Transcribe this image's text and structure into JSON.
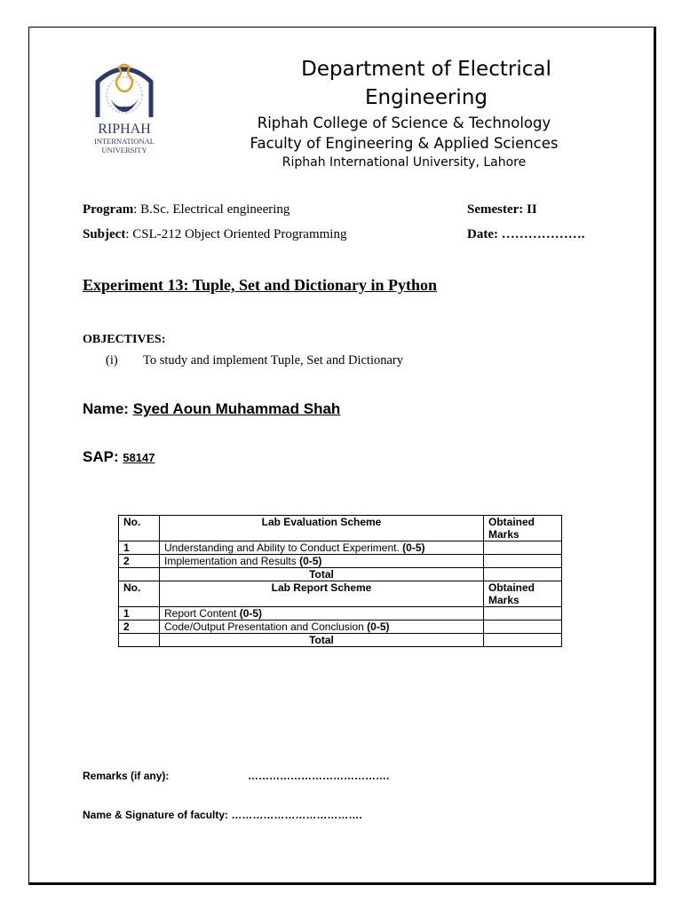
{
  "header": {
    "logo_text": [
      "RIPHAH",
      "INTERNATIONAL",
      "UNIVERSITY"
    ],
    "department": "Department of Electrical Engineering",
    "college": "Riphah College of Science & Technology",
    "faculty": "Faculty of Engineering & Applied Sciences",
    "university": "Riphah International University, Lahore"
  },
  "meta": {
    "program_label": "Program",
    "program_value": ": B.Sc. Electrical engineering",
    "semester_label": "Semester: II",
    "subject_label": "Subject",
    "subject_value": ": CSL-212 Object Oriented Programming",
    "date_label": "Date: ……………….",
    "colors": {
      "logo_blue": "#2b3a6b",
      "logo_gold": "#e0a030"
    }
  },
  "experiment_title": "Experiment 13: Tuple, Set and Dictionary in Python",
  "objectives": {
    "heading": "OBJECTIVES:",
    "items": [
      {
        "num": "(i)",
        "text": "To study and implement Tuple, Set and Dictionary"
      }
    ]
  },
  "student": {
    "name_label": "Name: ",
    "name": "Syed Aoun Muhammad Shah",
    "sap_label": "SAP: ",
    "sap": "58147"
  },
  "table": {
    "eval_header": {
      "no": "No.",
      "scheme": "Lab Evaluation Scheme",
      "marks": "Obtained Marks"
    },
    "eval_rows": [
      {
        "no": "1",
        "text": "Understanding and Ability to Conduct Experiment. ",
        "range": "(0-5)"
      },
      {
        "no": "2",
        "text": "Implementation and Results ",
        "range": "(0-5)"
      }
    ],
    "total": "Total",
    "report_header": {
      "no": "No.",
      "scheme": "Lab Report Scheme",
      "marks": "Obtained Marks"
    },
    "report_rows": [
      {
        "no": "1",
        "text": "Report Content ",
        "range": "(0-5)"
      },
      {
        "no": "2",
        "text": "Code/Output Presentation and Conclusion ",
        "range": "(0-5)"
      }
    ]
  },
  "footer": {
    "remarks_label": "Remarks (if any):",
    "remarks_dots": "………………………………….",
    "signature_label": "Name & Signature of faculty: ………………………………."
  }
}
